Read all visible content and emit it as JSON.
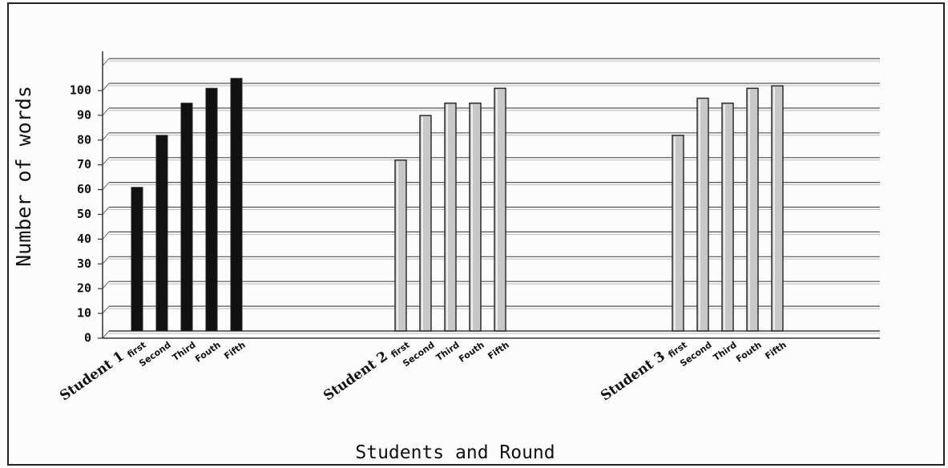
{
  "chart_data": {
    "type": "bar",
    "xlabel": "Students and Round",
    "ylabel": "Number of words",
    "yticks": [
      "0",
      "10",
      "20",
      "30",
      "40",
      "50",
      "60",
      "70",
      "80",
      "90",
      "100"
    ],
    "ylim": [
      0,
      100
    ],
    "grid": true,
    "groups": [
      {
        "name": "Student 1",
        "rounds": [
          "first",
          "Second",
          "Third",
          "Fouth",
          "Fifth"
        ],
        "values": [
          58,
          79,
          92,
          98,
          102
        ],
        "color": "#111111"
      },
      {
        "name": "Student 2",
        "rounds": [
          "first",
          "Second",
          "Third",
          "Fouth",
          "Fifth"
        ],
        "values": [
          69,
          87,
          92,
          92,
          98
        ],
        "color": "#c8c8c8"
      },
      {
        "name": "Student 3",
        "rounds": [
          "first",
          "Second",
          "Third",
          "Fouth",
          "Fifth"
        ],
        "values": [
          79,
          94,
          92,
          98,
          99
        ],
        "color": "#c8c8c8"
      }
    ]
  }
}
